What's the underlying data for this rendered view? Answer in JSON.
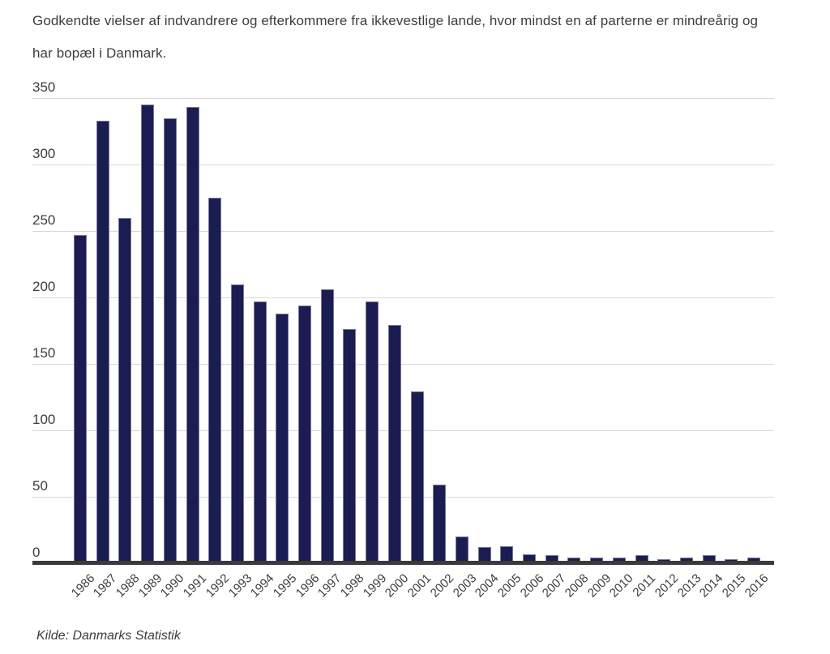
{
  "chart_data": {
    "type": "bar",
    "title": "Godkendte vielser af indvandrere og efterkommere fra ikkevestlige lande, hvor mindst en af parterne er mindreårig og har bopæl i Danmark.",
    "source": "Kilde: Danmarks Statistik",
    "categories": [
      "1986",
      "1987",
      "1988",
      "1989",
      "1990",
      "1991",
      "1992",
      "1993",
      "1994",
      "1995",
      "1996",
      "1997",
      "1998",
      "1999",
      "2000",
      "2001",
      "2002",
      "2003",
      "2004",
      "2005",
      "2006",
      "2007",
      "2008",
      "2009",
      "2010",
      "2011",
      "2012",
      "2013",
      "2014",
      "2015",
      "2016"
    ],
    "values": [
      247,
      333,
      260,
      345,
      335,
      343,
      275,
      210,
      197,
      188,
      194,
      206,
      176,
      197,
      179,
      129,
      59,
      20,
      12,
      13,
      7,
      6,
      4,
      4,
      4,
      6,
      3,
      4,
      6,
      3,
      4
    ],
    "xlabel": "",
    "ylabel": "",
    "ylim": [
      0,
      350
    ],
    "yticks": [
      350,
      300,
      250,
      200,
      150,
      100,
      50,
      0
    ],
    "grid": true,
    "legend_position": "none"
  },
  "colors": {
    "bar": "#1a1c52",
    "gridline": "#d8d8da",
    "axis": "#3a3a3a",
    "text": "#3d3d3d",
    "background": "#ffffff"
  }
}
